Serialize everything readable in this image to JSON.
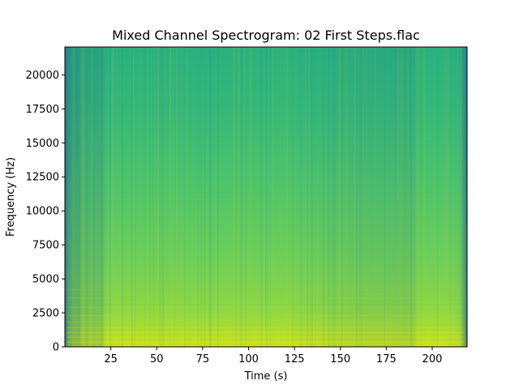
{
  "chart_data": {
    "type": "heatmap",
    "title": "Mixed Channel Spectrogram: 02 First Steps.flac",
    "xlabel": "Time (s)",
    "ylabel": "Frequency (Hz)",
    "xlim": [
      0,
      219
    ],
    "ylim": [
      0,
      22050
    ],
    "xticks": [
      25,
      50,
      75,
      100,
      125,
      150,
      175,
      200
    ],
    "yticks": [
      0,
      2500,
      5000,
      7500,
      10000,
      12500,
      15000,
      17500,
      20000
    ],
    "colormap": "viridis",
    "grid": false,
    "energy_profile": {
      "time_s": [
        0,
        1,
        2,
        4,
        6,
        8,
        10,
        12,
        14,
        16,
        18,
        20,
        22,
        25,
        40,
        60,
        80,
        100,
        120,
        140,
        150,
        160,
        175,
        185,
        190,
        192,
        200,
        210,
        215,
        217,
        219
      ],
      "relative_level": [
        0.2,
        0.3,
        0.45,
        0.5,
        0.52,
        0.54,
        0.62,
        0.58,
        0.62,
        0.58,
        0.64,
        0.56,
        0.7,
        0.72,
        0.73,
        0.72,
        0.72,
        0.73,
        0.72,
        0.7,
        0.68,
        0.66,
        0.66,
        0.64,
        0.64,
        0.72,
        0.74,
        0.72,
        0.68,
        0.5,
        0.3
      ]
    }
  }
}
